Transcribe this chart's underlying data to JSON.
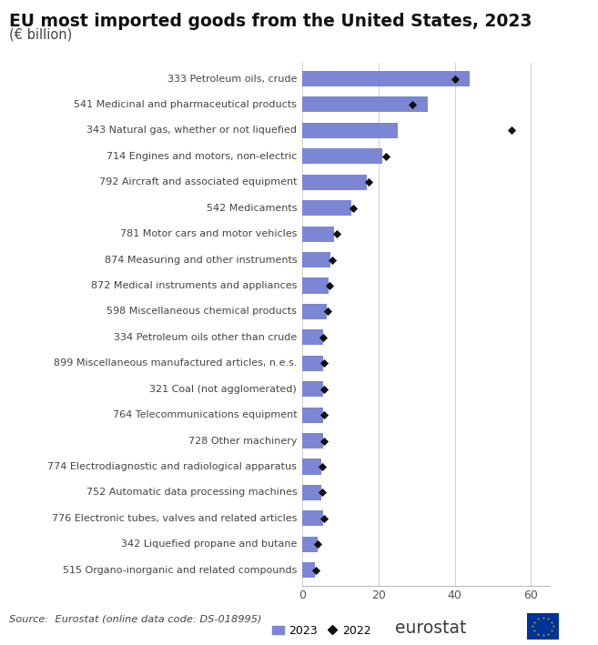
{
  "title": "EU most imported goods from the United States, 2023",
  "subtitle": "(€ billion)",
  "categories": [
    "333 Petroleum oils, crude",
    "541 Medicinal and pharmaceutical products",
    "343 Natural gas, whether or not liquefied",
    "714 Engines and motors, non-electric",
    "792 Aircraft and associated equipment",
    "542 Medicaments",
    "781 Motor cars and motor vehicles",
    "874 Measuring and other instruments",
    "872 Medical instruments and appliances",
    "598 Miscellaneous chemical products",
    "334 Petroleum oils other than crude",
    "899 Miscellaneous manufactured articles, n.e.s.",
    "321 Coal (not agglomerated)",
    "764 Telecommunications equipment",
    "728 Other machinery",
    "774 Electrodiagnostic and radiological apparatus",
    "752 Automatic data processing machines",
    "776 Electronic tubes, valves and related articles",
    "342 Liquefied propane and butane",
    "515 Organo-inorganic and related compounds"
  ],
  "values_2023": [
    44.0,
    33.0,
    25.0,
    21.0,
    17.0,
    13.0,
    8.5,
    7.5,
    7.0,
    6.5,
    5.5,
    5.5,
    5.5,
    5.5,
    5.5,
    5.0,
    5.0,
    5.5,
    4.0,
    3.5
  ],
  "values_2022": [
    40.0,
    29.0,
    55.0,
    22.0,
    17.5,
    13.5,
    9.0,
    7.8,
    7.2,
    6.8,
    5.6,
    5.8,
    5.8,
    5.8,
    5.8,
    5.2,
    5.2,
    5.8,
    4.2,
    3.6
  ],
  "bar_color": "#7b86d4",
  "scatter_color": "#111111",
  "xlim_min": 0,
  "xlim_max": 65,
  "xticks": [
    0,
    20,
    40,
    60
  ],
  "source_text": "Source:  Eurostat (online data code: DS-018995)",
  "legend_bar_label": "2023",
  "legend_scatter_label": "2022",
  "background_color": "#ffffff",
  "label_fontsize": 8.0,
  "title_fontsize": 13.5,
  "subtitle_fontsize": 10.5
}
